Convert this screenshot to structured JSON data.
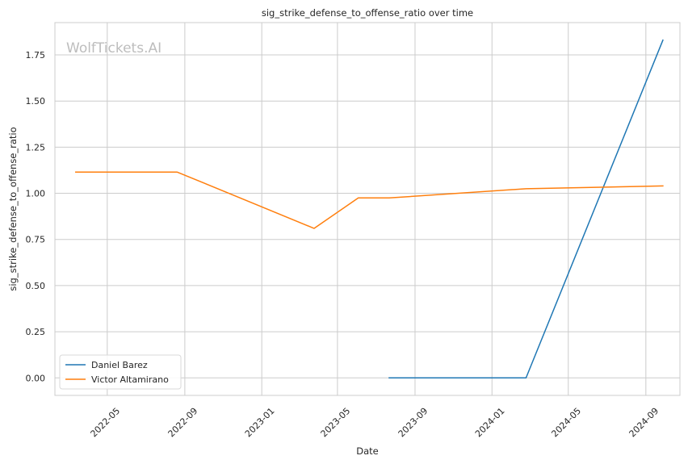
{
  "chart_data": {
    "type": "line",
    "title": "sig_strike_defense_to_offense_ratio over time",
    "xlabel": "Date",
    "ylabel": "sig_strike_defense_to_offense_ratio",
    "watermark": "WolfTickets.AI",
    "xlim": [
      "2022-02-07",
      "2024-10-25"
    ],
    "ylim": [
      -0.095,
      1.925
    ],
    "xticks": [
      "2022-05",
      "2022-09",
      "2023-01",
      "2023-05",
      "2023-09",
      "2024-01",
      "2024-05",
      "2024-09"
    ],
    "yticks": [
      "0.00",
      "0.25",
      "0.50",
      "0.75",
      "1.00",
      "1.25",
      "1.50",
      "1.75"
    ],
    "grid": true,
    "legend_position": "lower-left",
    "series": [
      {
        "name": "Daniel Barez",
        "color": "#1f77b4",
        "points": [
          {
            "x": "2023-07-22",
            "y": 0.0
          },
          {
            "x": "2024-02-24",
            "y": 0.0
          },
          {
            "x": "2024-09-28",
            "y": 1.83
          }
        ]
      },
      {
        "name": "Victor Altamirano",
        "color": "#ff7f0e",
        "points": [
          {
            "x": "2022-03-12",
            "y": 1.115
          },
          {
            "x": "2022-08-20",
            "y": 1.115
          },
          {
            "x": "2023-03-25",
            "y": 0.81
          },
          {
            "x": "2023-06-03",
            "y": 0.975
          },
          {
            "x": "2023-07-22",
            "y": 0.975
          },
          {
            "x": "2024-02-24",
            "y": 1.025
          },
          {
            "x": "2024-09-28",
            "y": 1.04
          }
        ]
      }
    ]
  }
}
